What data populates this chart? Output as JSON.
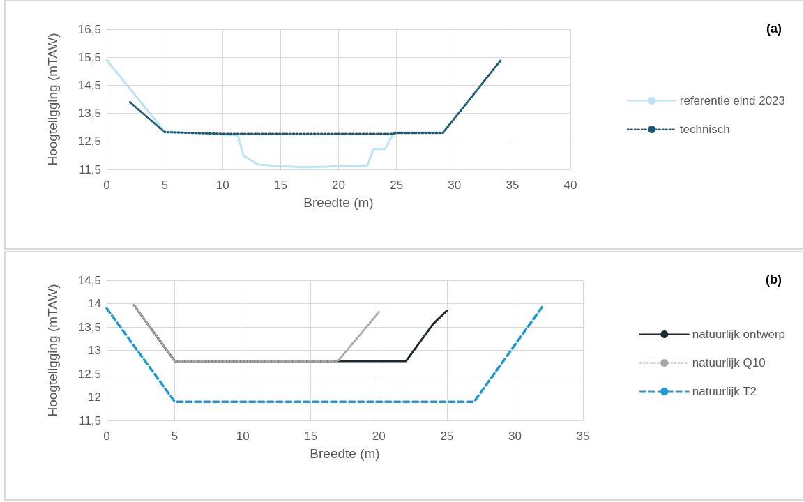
{
  "chart_data": [
    {
      "type": "line",
      "xlabel": "Breedte (m)",
      "ylabel": "Hoogteligging (mTAW)",
      "annotations": [
        "(a)"
      ],
      "xlim": [
        0,
        40
      ],
      "xticks": [
        0,
        5,
        10,
        15,
        20,
        25,
        30,
        35,
        40
      ],
      "ylim": [
        11.5,
        16.5
      ],
      "yticks": [
        {
          "value": 11.5,
          "label": "11,5"
        },
        {
          "value": 12.5,
          "label": "12,5"
        },
        {
          "value": 13.5,
          "label": "13,5"
        },
        {
          "value": 14.5,
          "label": "14,5"
        },
        {
          "value": 15.5,
          "label": "15,5"
        },
        {
          "value": 16.5,
          "label": "16,5"
        }
      ],
      "grid": true,
      "legend": "right",
      "marker": "none",
      "series": [
        {
          "name": "referentie eind 2023",
          "color": "#bde3f7",
          "line_style": "solid",
          "x": [
            0,
            5,
            11.3,
            11.8,
            13,
            15,
            17,
            19,
            20,
            21.5,
            22.5,
            23,
            24,
            24.8,
            29,
            34
          ],
          "values": [
            15.4,
            12.85,
            12.72,
            12.0,
            11.68,
            11.62,
            11.58,
            11.6,
            11.63,
            11.62,
            11.65,
            12.23,
            12.23,
            12.82,
            12.82,
            15.4
          ]
        },
        {
          "name": "technisch",
          "color": "#1f5a75",
          "line_style": "dotted",
          "x": [
            2,
            5,
            10,
            24.7,
            25,
            29,
            34
          ],
          "values": [
            13.9,
            12.83,
            12.77,
            12.77,
            12.8,
            12.8,
            15.4
          ]
        }
      ]
    },
    {
      "type": "line",
      "xlabel": "Breedte (m)",
      "ylabel": "Hoogteligging (mTAW)",
      "annotations": [
        "(b)"
      ],
      "xlim": [
        0,
        35
      ],
      "xticks": [
        0,
        5,
        10,
        15,
        20,
        25,
        30,
        35
      ],
      "ylim": [
        11.5,
        14.5
      ],
      "yticks": [
        {
          "value": 11.5,
          "label": "11,5"
        },
        12,
        {
          "value": 12.5,
          "label": "12,5"
        },
        13,
        {
          "value": 13.5,
          "label": "13,5"
        },
        14,
        {
          "value": 14.5,
          "label": "14,5"
        }
      ],
      "grid": true,
      "legend": "right",
      "marker": "none",
      "series": [
        {
          "name": "natuurlijk ontwerp",
          "color": "#1c2b33",
          "line_style": "solid",
          "x": [
            2,
            5,
            22,
            24,
            25
          ],
          "values": [
            13.97,
            12.77,
            12.77,
            13.57,
            13.85
          ]
        },
        {
          "name": "natuurlijk Q10",
          "color": "#a6a6a6",
          "line_style": "dotted",
          "x": [
            2,
            5,
            17,
            20
          ],
          "values": [
            13.97,
            12.77,
            12.77,
            13.82
          ]
        },
        {
          "name": "natuurlijk T2",
          "color": "#1b9ad6",
          "line_style": "dashed",
          "x": [
            0,
            5,
            27,
            32
          ],
          "values": [
            13.9,
            11.9,
            11.9,
            13.93
          ]
        }
      ]
    }
  ]
}
